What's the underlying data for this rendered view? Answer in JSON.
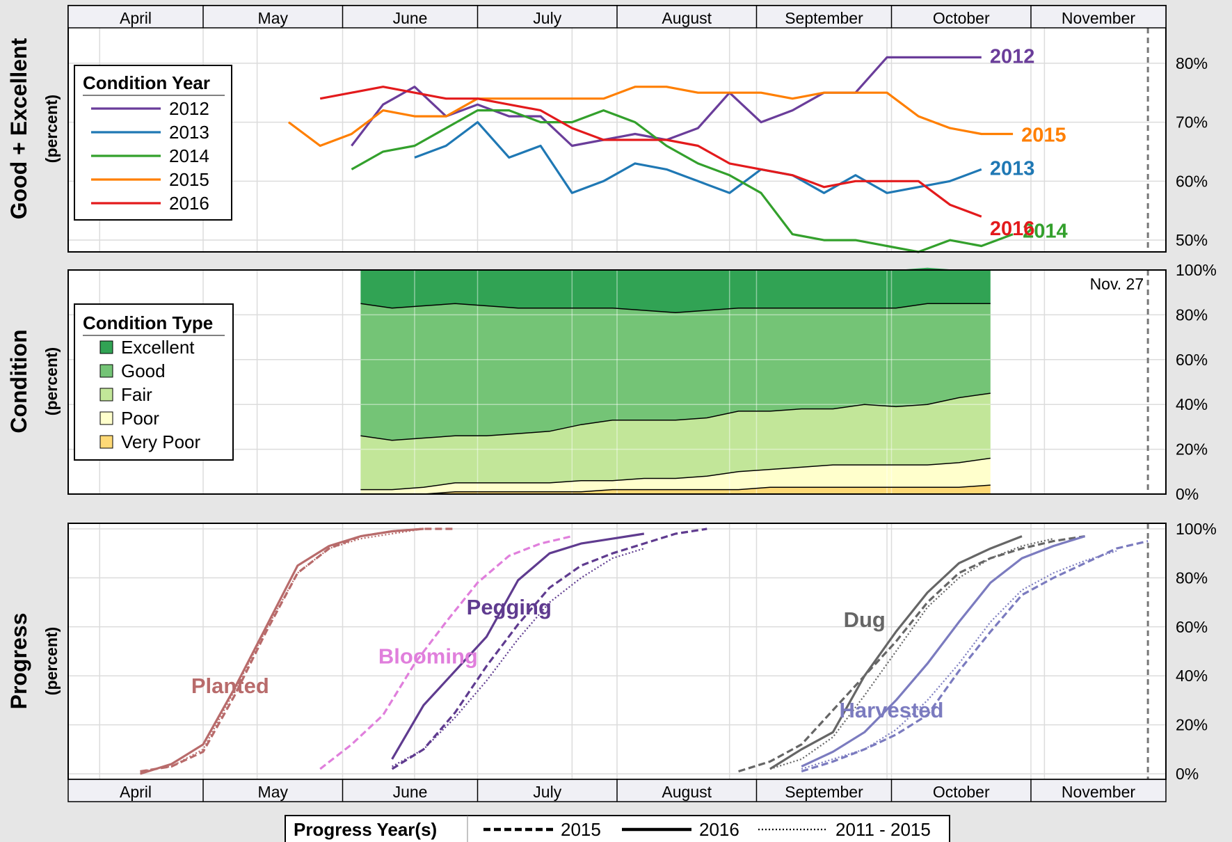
{
  "months": [
    "April",
    "May",
    "June",
    "July",
    "August",
    "September",
    "October",
    "November"
  ],
  "nov_marker_label": "Nov. 27",
  "chart_data": [
    {
      "type": "line",
      "ylabel": "Good + Excellent",
      "ylabel_sub": "(percent)",
      "yticks": [
        "50%",
        "60%",
        "70%",
        "80%"
      ],
      "ylim": [
        48,
        86
      ],
      "legend_title": "Condition Year",
      "legend_position": "left",
      "colors": {
        "2012": "#6a3d9a",
        "2013": "#1f78b4",
        "2014": "#33a02c",
        "2015": "#ff7f00",
        "2016": "#e31a1c"
      },
      "series": [
        {
          "name": "2012",
          "x": [
            "06-03",
            "06-10",
            "06-17",
            "06-24",
            "07-01",
            "07-08",
            "07-15",
            "07-22",
            "07-29",
            "08-05",
            "08-12",
            "08-19",
            "08-26",
            "09-02",
            "09-09",
            "09-16",
            "09-23",
            "09-30",
            "10-07",
            "10-14",
            "10-21"
          ],
          "values": [
            66,
            73,
            76,
            71,
            73,
            71,
            71,
            66,
            67,
            68,
            67,
            69,
            75,
            70,
            72,
            75,
            75,
            81,
            81,
            81,
            81
          ]
        },
        {
          "name": "2013",
          "x": [
            "06-17",
            "06-24",
            "07-01",
            "07-08",
            "07-15",
            "07-22",
            "07-29",
            "08-05",
            "08-12",
            "08-19",
            "08-26",
            "09-02",
            "09-09",
            "09-16",
            "09-23",
            "09-30",
            "10-07",
            "10-14",
            "10-21"
          ],
          "values": [
            64,
            66,
            70,
            64,
            66,
            58,
            60,
            63,
            62,
            60,
            58,
            62,
            61,
            58,
            61,
            58,
            59,
            60,
            62
          ]
        },
        {
          "name": "2014",
          "x": [
            "06-03",
            "06-10",
            "06-17",
            "06-24",
            "07-01",
            "07-08",
            "07-15",
            "07-22",
            "07-29",
            "08-05",
            "08-12",
            "08-19",
            "08-26",
            "09-02",
            "09-09",
            "09-16",
            "09-23",
            "09-30",
            "10-07",
            "10-14",
            "10-21",
            "10-28"
          ],
          "values": [
            62,
            65,
            66,
            69,
            72,
            72,
            70,
            70,
            72,
            70,
            66,
            63,
            61,
            58,
            51,
            50,
            50,
            49,
            48,
            50,
            49,
            51
          ]
        },
        {
          "name": "2015",
          "x": [
            "05-20",
            "05-27",
            "06-03",
            "06-10",
            "06-17",
            "06-24",
            "07-01",
            "07-08",
            "07-15",
            "07-22",
            "07-29",
            "08-05",
            "08-12",
            "08-19",
            "08-26",
            "09-02",
            "09-09",
            "09-16",
            "09-23",
            "09-30",
            "10-07",
            "10-14",
            "10-21",
            "10-28"
          ],
          "values": [
            70,
            66,
            68,
            72,
            71,
            71,
            74,
            74,
            74,
            74,
            74,
            76,
            76,
            75,
            75,
            75,
            74,
            75,
            75,
            75,
            71,
            69,
            68,
            68
          ]
        },
        {
          "name": "2016",
          "x": [
            "05-27",
            "06-03",
            "06-10",
            "06-17",
            "06-24",
            "07-01",
            "07-08",
            "07-15",
            "07-22",
            "07-29",
            "08-05",
            "08-12",
            "08-19",
            "08-26",
            "09-02",
            "09-09",
            "09-16",
            "09-23",
            "09-30",
            "10-07",
            "10-14",
            "10-21"
          ],
          "values": [
            74,
            75,
            76,
            75,
            74,
            74,
            73,
            72,
            69,
            67,
            67,
            67,
            66,
            63,
            62,
            61,
            59,
            60,
            60,
            60,
            56,
            54
          ]
        }
      ]
    },
    {
      "type": "area",
      "ylabel": "Condition",
      "ylabel_sub": "(percent)",
      "yticks": [
        "0%",
        "20%",
        "40%",
        "60%",
        "80%",
        "100%"
      ],
      "ylim": [
        0,
        100
      ],
      "legend_title": "Condition Type",
      "legend_position": "left",
      "stack_order": [
        "Very Poor",
        "Poor",
        "Fair",
        "Good",
        "Excellent"
      ],
      "colors": {
        "Excellent": "#31a354",
        "Good": "#74c476",
        "Fair": "#c2e699",
        "Poor": "#ffffcc",
        "Very Poor": "#fed976"
      },
      "x": [
        "06-05",
        "06-12",
        "06-19",
        "06-26",
        "07-03",
        "07-10",
        "07-17",
        "07-24",
        "07-31",
        "08-07",
        "08-14",
        "08-21",
        "08-28",
        "09-04",
        "09-11",
        "09-18",
        "09-25",
        "10-02",
        "10-09",
        "10-16",
        "10-23"
      ],
      "series": [
        {
          "name": "Very Poor",
          "values": [
            0,
            0,
            0,
            1,
            1,
            1,
            1,
            1,
            2,
            2,
            2,
            2,
            2,
            3,
            3,
            3,
            3,
            3,
            3,
            3,
            4
          ]
        },
        {
          "name": "Poor",
          "values": [
            2,
            2,
            3,
            4,
            4,
            4,
            4,
            5,
            4,
            5,
            5,
            6,
            8,
            8,
            9,
            10,
            10,
            10,
            10,
            11,
            12
          ]
        },
        {
          "name": "Fair",
          "values": [
            24,
            22,
            22,
            21,
            21,
            22,
            23,
            25,
            27,
            26,
            26,
            26,
            27,
            26,
            26,
            25,
            27,
            26,
            27,
            29,
            29
          ]
        },
        {
          "name": "Good",
          "values": [
            59,
            59,
            59,
            59,
            58,
            56,
            55,
            52,
            50,
            49,
            48,
            48,
            46,
            46,
            45,
            45,
            43,
            44,
            45,
            42,
            40
          ]
        },
        {
          "name": "Excellent",
          "values": [
            15,
            17,
            16,
            15,
            16,
            17,
            17,
            17,
            17,
            18,
            19,
            18,
            17,
            17,
            17,
            17,
            17,
            17,
            16,
            15,
            15
          ]
        }
      ]
    },
    {
      "type": "line",
      "ylabel": "Progress",
      "ylabel_sub": "(percent)",
      "yticks": [
        "0%",
        "20%",
        "40%",
        "60%",
        "80%",
        "100%"
      ],
      "ylim": [
        0,
        100
      ],
      "legend_title": "Progress Year(s)",
      "legend_position": "bottom",
      "line_styles": {
        "2016": "solid",
        "2015": "dashed",
        "2011 - 2015": "dotted"
      },
      "stage_labels": [
        {
          "name": "Planted",
          "color": "#b86b6b"
        },
        {
          "name": "Blooming",
          "color": "#e07fdc"
        },
        {
          "name": "Pegging",
          "color": "#5f3b8f"
        },
        {
          "name": "Dug",
          "color": "#666666"
        },
        {
          "name": "Harvested",
          "color": "#7b7bbf"
        }
      ],
      "series": [
        {
          "name": "Planted 2016",
          "stage": "Planted",
          "years": "2016",
          "x": [
            "04-17",
            "04-24",
            "05-01",
            "05-08",
            "05-15",
            "05-22",
            "05-29",
            "06-05",
            "06-12",
            "06-19"
          ],
          "values": [
            0,
            4,
            12,
            35,
            60,
            85,
            93,
            97,
            99,
            100
          ]
        },
        {
          "name": "Planted 2015",
          "stage": "Planted",
          "years": "2015",
          "x": [
            "04-17",
            "04-24",
            "05-01",
            "05-08",
            "05-15",
            "05-22",
            "05-29",
            "06-05",
            "06-12",
            "06-19",
            "06-26"
          ],
          "values": [
            1,
            3,
            9,
            32,
            58,
            82,
            92,
            97,
            99,
            100,
            100
          ]
        },
        {
          "name": "Planted 2011 - 2015",
          "stage": "Planted",
          "years": "2011 - 2015",
          "x": [
            "04-17",
            "04-24",
            "05-01",
            "05-08",
            "05-15",
            "05-22",
            "05-29",
            "06-05",
            "06-12",
            "06-19"
          ],
          "values": [
            1,
            3,
            10,
            34,
            59,
            82,
            92,
            96,
            98,
            100
          ]
        },
        {
          "name": "Blooming 2015",
          "stage": "Blooming",
          "years": "2015",
          "x": [
            "05-27",
            "06-03",
            "06-10",
            "06-17",
            "06-24",
            "07-01",
            "07-08",
            "07-15",
            "07-22"
          ],
          "values": [
            2,
            12,
            24,
            45,
            62,
            78,
            89,
            94,
            97
          ]
        },
        {
          "name": "Pegging 2016",
          "stage": "Pegging",
          "years": "2016",
          "x": [
            "06-12",
            "06-19",
            "06-26",
            "07-03",
            "07-10",
            "07-17",
            "07-24",
            "07-31",
            "08-07"
          ],
          "values": [
            6,
            28,
            42,
            56,
            79,
            90,
            94,
            96,
            98
          ]
        },
        {
          "name": "Pegging 2015",
          "stage": "Pegging",
          "years": "2015",
          "x": [
            "06-12",
            "06-19",
            "06-26",
            "07-03",
            "07-10",
            "07-17",
            "07-24",
            "07-31",
            "08-07",
            "08-14",
            "08-21"
          ],
          "values": [
            2,
            10,
            25,
            44,
            61,
            76,
            85,
            90,
            94,
            98,
            100
          ]
        },
        {
          "name": "Pegging 2011 - 2015",
          "stage": "Pegging",
          "years": "2011 - 2015",
          "x": [
            "06-12",
            "06-19",
            "06-26",
            "07-03",
            "07-10",
            "07-17",
            "07-24",
            "07-31",
            "08-07"
          ],
          "values": [
            3,
            10,
            23,
            38,
            55,
            70,
            80,
            88,
            92
          ]
        },
        {
          "name": "Dug 2016",
          "stage": "Dug",
          "years": "2016",
          "x": [
            "09-04",
            "09-11",
            "09-18",
            "09-25",
            "10-02",
            "10-09",
            "10-16",
            "10-23",
            "10-30"
          ],
          "values": [
            2,
            10,
            17,
            40,
            58,
            74,
            86,
            92,
            97
          ]
        },
        {
          "name": "Dug 2015",
          "stage": "Dug",
          "years": "2015",
          "x": [
            "08-28",
            "09-04",
            "09-11",
            "09-18",
            "09-25",
            "10-02",
            "10-09",
            "10-16",
            "10-23",
            "10-30",
            "11-06",
            "11-13"
          ],
          "values": [
            1,
            5,
            12,
            26,
            40,
            54,
            70,
            82,
            88,
            92,
            95,
            97
          ]
        },
        {
          "name": "Dug 2011 - 2015",
          "stage": "Dug",
          "years": "2011 - 2015",
          "x": [
            "09-04",
            "09-11",
            "09-18",
            "09-25",
            "10-02",
            "10-09",
            "10-16",
            "10-23",
            "10-30",
            "11-06"
          ],
          "values": [
            2,
            6,
            15,
            32,
            50,
            68,
            80,
            88,
            93,
            96
          ]
        },
        {
          "name": "Harvested 2016",
          "stage": "Harvested",
          "years": "2016",
          "x": [
            "09-11",
            "09-18",
            "09-25",
            "10-02",
            "10-09",
            "10-16",
            "10-23",
            "10-30",
            "11-06",
            "11-13"
          ],
          "values": [
            3,
            9,
            17,
            30,
            45,
            62,
            78,
            88,
            93,
            97
          ]
        },
        {
          "name": "Harvested 2015",
          "stage": "Harvested",
          "years": "2015",
          "x": [
            "09-11",
            "09-18",
            "09-25",
            "10-02",
            "10-09",
            "10-16",
            "10-23",
            "10-30",
            "11-06",
            "11-13",
            "11-20",
            "11-27"
          ],
          "values": [
            1,
            5,
            10,
            16,
            24,
            42,
            58,
            73,
            80,
            86,
            92,
            95
          ]
        },
        {
          "name": "Harvested 2011 - 2015",
          "stage": "Harvested",
          "years": "2011 - 2015",
          "x": [
            "09-11",
            "09-18",
            "09-25",
            "10-02",
            "10-09",
            "10-16",
            "10-23",
            "10-30",
            "11-06",
            "11-13",
            "11-20"
          ],
          "values": [
            2,
            6,
            10,
            18,
            30,
            45,
            62,
            75,
            82,
            87,
            91
          ]
        }
      ]
    }
  ]
}
